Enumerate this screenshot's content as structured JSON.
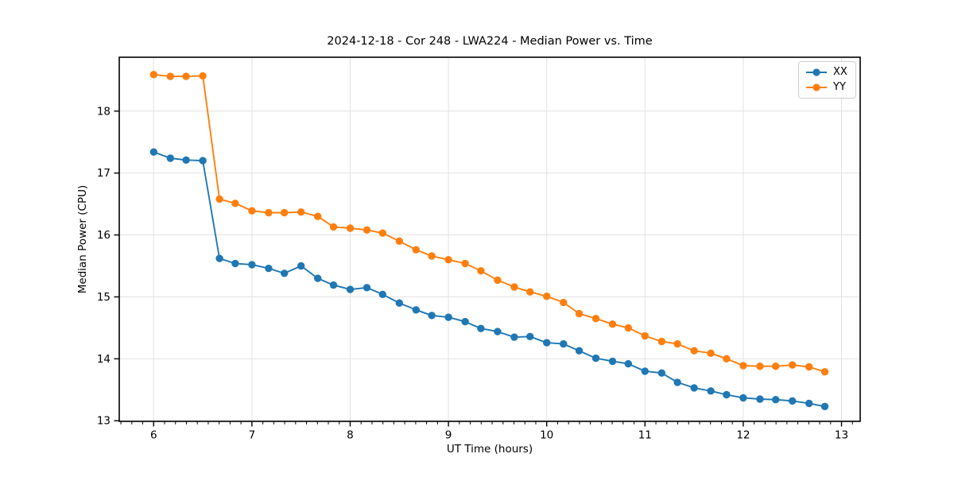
{
  "chart_data": {
    "type": "line",
    "title": "2024-12-18 - Cor 248 - LWA224 - Median Power vs. Time",
    "xlabel": "UT Time (hours)",
    "ylabel": "Median Power (CPU)",
    "xlim": [
      5.65,
      13.19
    ],
    "ylim": [
      12.99,
      18.87
    ],
    "xticks": [
      6,
      7,
      8,
      9,
      10,
      11,
      12,
      13
    ],
    "yticks": [
      13,
      14,
      15,
      16,
      17,
      18
    ],
    "x_minor_divisions": 9,
    "grid": true,
    "grid_color": "#e2e2e2",
    "legend_position": "upper right",
    "x": [
      6.0,
      6.17,
      6.33,
      6.5,
      6.67,
      6.83,
      7.0,
      7.17,
      7.33,
      7.5,
      7.67,
      7.83,
      8.0,
      8.17,
      8.33,
      8.5,
      8.67,
      8.83,
      9.0,
      9.17,
      9.33,
      9.5,
      9.67,
      9.83,
      10.0,
      10.17,
      10.33,
      10.5,
      10.67,
      10.83,
      11.0,
      11.17,
      11.33,
      11.5,
      11.67,
      11.83,
      12.0,
      12.17,
      12.33,
      12.5,
      12.67,
      12.83
    ],
    "series": [
      {
        "name": "XX",
        "color": "#1f77b4",
        "values": [
          17.34,
          17.24,
          17.21,
          17.2,
          15.62,
          15.54,
          15.52,
          15.46,
          15.38,
          15.5,
          15.3,
          15.19,
          15.12,
          15.15,
          15.04,
          14.9,
          14.79,
          14.7,
          14.67,
          14.6,
          14.49,
          14.44,
          14.35,
          14.36,
          14.26,
          14.24,
          14.13,
          14.01,
          13.96,
          13.92,
          13.8,
          13.77,
          13.62,
          13.53,
          13.48,
          13.42,
          13.37,
          13.35,
          13.34,
          13.32,
          13.28,
          13.23
        ]
      },
      {
        "name": "YY",
        "color": "#ff7f0e",
        "values": [
          18.59,
          18.56,
          18.56,
          18.57,
          16.58,
          16.51,
          16.39,
          16.36,
          16.36,
          16.37,
          16.3,
          16.13,
          16.11,
          16.08,
          16.03,
          15.9,
          15.76,
          15.66,
          15.6,
          15.54,
          15.42,
          15.27,
          15.16,
          15.08,
          15.01,
          14.91,
          14.73,
          14.65,
          14.56,
          14.5,
          14.37,
          14.28,
          14.24,
          14.13,
          14.09,
          14.0,
          13.89,
          13.88,
          13.88,
          13.9,
          13.87,
          13.79
        ]
      }
    ]
  }
}
